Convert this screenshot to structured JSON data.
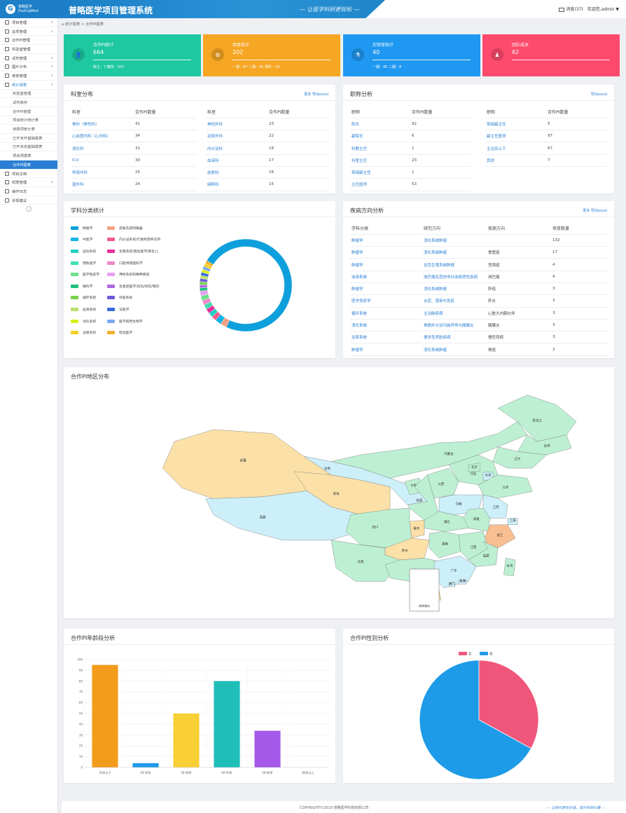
{
  "header": {
    "logo_line1": "普略医学",
    "logo_line2": "PoolingMed",
    "system_title": "普略医学项目管理系统",
    "slogan": "— 让医学科研更轻松 —",
    "messages": "消息(37)",
    "greeting": "欢迎您,admin",
    "caret": "▼"
  },
  "sidebar": {
    "items": [
      {
        "label": "项目管理",
        "chev": "∨"
      },
      {
        "label": "总项管理",
        "chev": "∨"
      },
      {
        "label": "合作PI管理",
        "chev": ""
      },
      {
        "label": "实验室管理",
        "chev": ""
      },
      {
        "label": "试剂管理",
        "chev": "∨"
      },
      {
        "label": "图片分布",
        "chev": "∨"
      },
      {
        "label": "考核管理",
        "chev": "∨"
      },
      {
        "label": "统计报表",
        "chev": "∨"
      }
    ],
    "sub_items": [
      "实验室管理",
      "试剂库存",
      "合作PI管理",
      "项目统计统计表",
      "待拨项统计表",
      "已开未开基础报表",
      "已开未完基础报表",
      "项目预报表",
      "合作PI图表"
    ],
    "bottom_items": [
      {
        "label": "项目文档",
        "chev": ""
      },
      {
        "label": "权限管理",
        "chev": "∨"
      },
      {
        "label": "操作日志",
        "chev": ""
      },
      {
        "label": "反馈建议",
        "chev": ""
      }
    ],
    "collapse": "‹"
  },
  "breadcrumb": "统计报表  >  合作PI图表",
  "stats": [
    {
      "label": "合作PI统计",
      "value": "664",
      "sub": "院士：7   教授：557",
      "color": "#1ec8a0"
    },
    {
      "label": "项目统计",
      "value": "202",
      "sub": "一期：87   二期：45   课件：19",
      "color": "#f5a623"
    },
    {
      "label": "实验室统计",
      "value": "40",
      "sub": "一期：45   二期：8",
      "color": "#1e98f0"
    },
    {
      "label": "团队成员",
      "value": "82",
      "sub": "",
      "color": "#fd4a6d"
    }
  ],
  "dept": {
    "title": "科室分布",
    "link": "更多  导出excel",
    "col_dept": "科室",
    "col_count": "合作PI数量",
    "left": [
      [
        "骨科（骨伤科）",
        "41"
      ],
      [
        "心血管内科（心内科）",
        "34"
      ],
      [
        "消化科",
        "31"
      ],
      [
        "ICU",
        "30"
      ],
      [
        "呼吸内科",
        "25"
      ],
      [
        "普外科",
        "24"
      ]
    ],
    "right": [
      [
        "神经外科",
        "23"
      ],
      [
        "泌尿外科",
        "22"
      ],
      [
        "内分泌科",
        "18"
      ],
      [
        "血液科",
        "17"
      ],
      [
        "皮肤科",
        "16"
      ],
      [
        "麻醉科",
        "15"
      ]
    ]
  },
  "title_dist": {
    "title": "职称分析",
    "link": "导出excel",
    "col_title": "职称",
    "col_count": "合作PI数量",
    "left": [
      [
        "院长",
        "92"
      ],
      [
        "副院长",
        "6"
      ],
      [
        "科教主任",
        "1"
      ],
      [
        "科室主任",
        "23"
      ],
      [
        "带组副主任",
        "1"
      ],
      [
        "主任医师",
        "53"
      ]
    ],
    "right": [
      [
        "带组副主任",
        "5"
      ],
      [
        "副主任医师",
        "97"
      ],
      [
        "主治及以下",
        "67"
      ],
      [
        "其他",
        "7"
      ]
    ]
  },
  "subject": {
    "title": "学科分类统计",
    "legend": [
      {
        "name": "肿瘤学",
        "color": "#0ea0dc"
      },
      {
        "name": "皮肤及其附属器",
        "color": "#f5a083"
      },
      {
        "name": "中医学",
        "color": "#13b4e8"
      },
      {
        "name": "内分泌系统/代谢和营养支持",
        "color": "#f5588a"
      },
      {
        "name": "运动系统",
        "color": "#22d0c3"
      },
      {
        "name": "生殖系统/围生医学/新生儿",
        "color": "#e8309a"
      },
      {
        "name": "预防医学",
        "color": "#3ee0b0"
      },
      {
        "name": "口腔颅颌面科学",
        "color": "#f088c8"
      },
      {
        "name": "医学免疫学",
        "color": "#6ce08a"
      },
      {
        "name": "神经系统和精神疾病",
        "color": "#e6a0f0"
      },
      {
        "name": "眼科学",
        "color": "#1ec27a"
      },
      {
        "name": "急重症医学/创伤/烧伤/整形",
        "color": "#b06ae0"
      },
      {
        "name": "循环系统",
        "color": "#7ad04a"
      },
      {
        "name": "呼吸系统",
        "color": "#6c5cd8"
      },
      {
        "name": "血液系统",
        "color": "#b8e06a"
      },
      {
        "name": "法医学",
        "color": "#3a6ad8"
      },
      {
        "name": "消化系统",
        "color": "#d8f01a"
      },
      {
        "name": "医学病原生物学",
        "color": "#7aa8f0"
      },
      {
        "name": "泌尿系统",
        "color": "#f5d020"
      },
      {
        "name": "检验医学",
        "color": "#f0b030"
      }
    ],
    "values": [
      132,
      4,
      4,
      3,
      3,
      3,
      3,
      3,
      3,
      3,
      2,
      2,
      2,
      2,
      2,
      2,
      2,
      2,
      2,
      2
    ]
  },
  "disease": {
    "title": "疾病方向分析",
    "link": "更多  导出excel",
    "cols": [
      "学科分类",
      "研究方向",
      "疾病方向",
      "项目数量"
    ],
    "rows": [
      [
        "肿瘤学",
        "消化系统肿瘤",
        "",
        "132"
      ],
      [
        "肿瘤学",
        "消化系统肿瘤",
        "食管癌",
        "17"
      ],
      [
        "肿瘤学",
        "女性生殖系统肿瘤",
        "宫颈癌",
        "4"
      ],
      [
        "血液系统",
        "淋巴瘤及其他非白血病恶性疾病",
        "淋巴瘤",
        "4"
      ],
      [
        "肿瘤学",
        "消化系统肿瘤",
        "肝癌",
        "3"
      ],
      [
        "医学免疫学",
        "炎症、感染与免疫",
        "肝炎",
        "3"
      ],
      [
        "循环系统",
        "主动脉疾病",
        "心脏大内膜伙伴",
        "3"
      ],
      [
        "消化系统",
        "胃肠外分泌功能异常与胰腺炎",
        "胰腺炎",
        "3"
      ],
      [
        "泌尿系统",
        "慢发性肾脏疾病",
        "慢性肾病",
        "3"
      ],
      [
        "肿瘤学",
        "消化系统肿瘤",
        "胃癌",
        "2"
      ]
    ]
  },
  "map": {
    "title": "合作PI地区分布",
    "inset_label": "南海诸岛",
    "provinces": [
      {
        "name": "黑龙江",
        "level": 0.3
      },
      {
        "name": "吉林",
        "level": 0.3
      },
      {
        "name": "辽宁",
        "level": 0.25
      },
      {
        "name": "内蒙古",
        "level": 0.25
      },
      {
        "name": "新疆",
        "level": 0.5
      },
      {
        "name": "西藏",
        "level": 0.15
      },
      {
        "name": "青海",
        "level": 0.4
      },
      {
        "name": "甘肃",
        "level": 0.15
      },
      {
        "name": "宁夏",
        "level": 0.2
      },
      {
        "name": "陕西",
        "level": 0.2
      },
      {
        "name": "山西",
        "level": 0.3
      },
      {
        "name": "河北",
        "level": 0.2
      },
      {
        "name": "北京",
        "level": 0.2
      },
      {
        "name": "天津",
        "level": 0.15
      },
      {
        "name": "山东",
        "level": 0.3
      },
      {
        "name": "河南",
        "level": 0.15
      },
      {
        "name": "四川",
        "level": 0.25
      },
      {
        "name": "重庆",
        "level": 0.4
      },
      {
        "name": "湖北",
        "level": 0.3
      },
      {
        "name": "安徽",
        "level": 0.2
      },
      {
        "name": "江苏",
        "level": 0.15
      },
      {
        "name": "上海",
        "level": 0.15
      },
      {
        "name": "浙江",
        "level": 0.7
      },
      {
        "name": "云南",
        "level": 0.3
      },
      {
        "name": "贵州",
        "level": 0.45
      },
      {
        "name": "湖南",
        "level": 0.2
      },
      {
        "name": "江西",
        "level": 0.3
      },
      {
        "name": "福建",
        "level": 0.2
      },
      {
        "name": "广西",
        "level": 0.25
      },
      {
        "name": "广东",
        "level": 0.1
      },
      {
        "name": "海南",
        "level": 0.45
      },
      {
        "name": "台湾",
        "level": 0.25
      },
      {
        "name": "香港",
        "level": 0.1
      },
      {
        "name": "澳门",
        "level": 0.1
      }
    ]
  },
  "age": {
    "title": "合作PI年龄段分析",
    "chart_data": {
      "type": "bar",
      "categories": [
        "20岁以下",
        "20-30岁",
        "30-40岁",
        "40-50岁",
        "50-60岁",
        "60岁以上"
      ],
      "values": [
        95,
        4,
        50,
        80,
        34,
        0
      ],
      "colors": [
        "#f39c1c",
        "#1e9be8",
        "#f8cf35",
        "#1fbeb9",
        "#a559e8",
        "#ef6c9a"
      ],
      "ylim": [
        0,
        100
      ],
      "yticks": [
        0,
        10,
        20,
        30,
        40,
        50,
        60,
        70,
        80,
        90,
        100
      ],
      "grid": true
    }
  },
  "gender": {
    "title": "合作PI性别分析",
    "chart_data": {
      "type": "pie",
      "labels": [
        "女",
        "男"
      ],
      "values": [
        33,
        67
      ],
      "colors": [
        "#f0567a",
        "#1e9be8"
      ],
      "legend": "top-center"
    }
  },
  "footer": {
    "copyright": "COPYRIGHT©2019 普略医学科技有限公司",
    "motto": "— 让研究更有价值，提升科研兴趣 —"
  }
}
